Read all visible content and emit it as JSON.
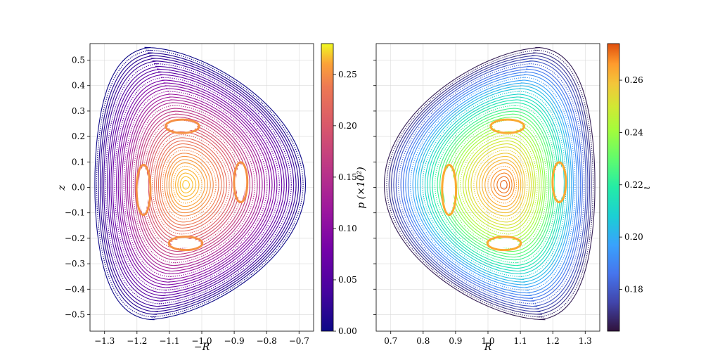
{
  "chart_data": [
    {
      "type": "poincare-scatter",
      "title": "",
      "xlabel": "−R",
      "ylabel": "z",
      "xlim": [
        -1.345,
        -0.655
      ],
      "ylim": [
        -0.565,
        0.565
      ],
      "xticks": [
        -1.3,
        -1.2,
        -1.1,
        -1.0,
        -0.9,
        -0.8,
        -0.7
      ],
      "xtick_labels": [
        "−1.3",
        "−1.2",
        "−1.1",
        "−1.0",
        "−0.9",
        "−0.8",
        "−0.7"
      ],
      "yticks": [
        0.5,
        0.4,
        0.3,
        0.2,
        0.1,
        0.0,
        -0.1,
        -0.2,
        -0.3,
        -0.4,
        -0.5
      ],
      "ytick_labels": [
        "0.5",
        "0.4",
        "0.3",
        "0.2",
        "0.1",
        "0.0",
        "−0.1",
        "−0.2",
        "−0.3",
        "−0.4",
        "−0.5"
      ],
      "grid": true,
      "magnetic_axis": [
        -1.05,
        0.01
      ],
      "boundary": {
        "left": -1.33,
        "right": -0.68,
        "top": 0.55,
        "bottom": -0.52
      },
      "islands": [
        {
          "x": -1.06,
          "z": 0.24,
          "dx": 0.045,
          "dz": 0.018
        },
        {
          "x": -0.88,
          "z": 0.02,
          "dx": 0.014,
          "dz": 0.07
        },
        {
          "x": -1.05,
          "z": -0.22,
          "dx": 0.045,
          "dz": 0.018
        },
        {
          "x": -1.18,
          "z": -0.01,
          "dx": 0.015,
          "dz": 0.09
        }
      ],
      "colorbar": {
        "label": "p (×10²)",
        "colormap": "plasma",
        "range": [
          0.0,
          0.28
        ],
        "ticks": [
          0.0,
          0.05,
          0.1,
          0.15,
          0.2,
          0.25
        ],
        "tick_labels": [
          "0.00",
          "0.05",
          "0.10",
          "0.15",
          "0.20",
          "0.25"
        ]
      }
    },
    {
      "type": "poincare-scatter",
      "title": "",
      "xlabel": "R",
      "ylabel": "",
      "xlim": [
        0.655,
        1.345
      ],
      "ylim": [
        -0.565,
        0.565
      ],
      "xticks": [
        0.7,
        0.8,
        0.9,
        1.0,
        1.1,
        1.2,
        1.3
      ],
      "xtick_labels": [
        "0.7",
        "0.8",
        "0.9",
        "1.0",
        "1.1",
        "1.2",
        "1.3"
      ],
      "grid": true,
      "magnetic_axis": [
        1.05,
        0.01
      ],
      "boundary": {
        "left": 0.68,
        "right": 1.33,
        "top": 0.55,
        "bottom": -0.52
      },
      "islands": [
        {
          "x": 1.06,
          "z": 0.24,
          "dx": 0.045,
          "dz": 0.018
        },
        {
          "x": 1.22,
          "z": 0.02,
          "dx": 0.014,
          "dz": 0.07
        },
        {
          "x": 1.05,
          "z": -0.22,
          "dx": 0.045,
          "dz": 0.018
        },
        {
          "x": 0.88,
          "z": -0.01,
          "dx": 0.015,
          "dz": 0.09
        }
      ],
      "colorbar": {
        "label": "ι",
        "colormap": "turbo",
        "range": [
          0.164,
          0.274
        ],
        "ticks": [
          0.18,
          0.2,
          0.22,
          0.24,
          0.26
        ],
        "tick_labels": [
          "0.18",
          "0.20",
          "0.22",
          "0.24",
          "0.26"
        ]
      }
    }
  ]
}
